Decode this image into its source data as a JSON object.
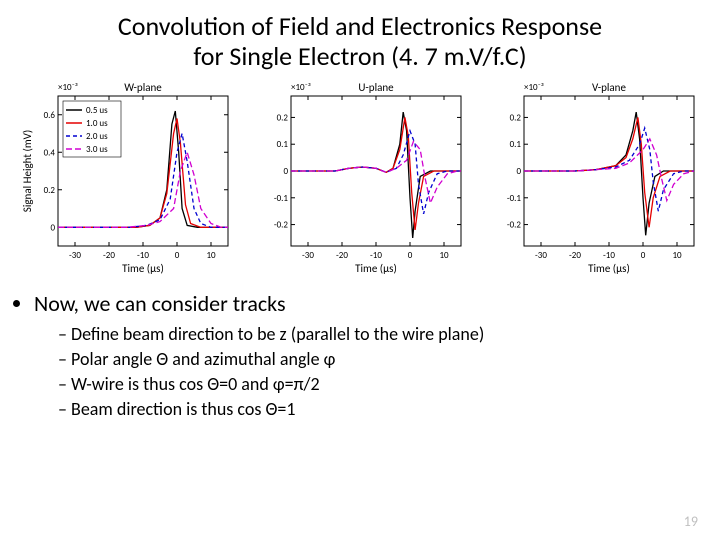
{
  "title_line1": "Convolution of Field and Electronics Response",
  "title_line2": "for Single Electron (4. 7 m.V/f.C)",
  "page_number": "19",
  "axis": {
    "xlabel": "Time (µs)",
    "ylabel": "Signal Height (mV)",
    "x10": "×10⁻³",
    "xlim": [
      -35,
      15
    ],
    "xticks": [
      -30,
      -20,
      -10,
      0,
      10
    ],
    "font_size": 10,
    "border_color": "#000000",
    "background": "#ffffff"
  },
  "legend": {
    "items": [
      {
        "label": "0.5 us",
        "color": "#000000",
        "dash": ""
      },
      {
        "label": "1.0 us",
        "color": "#e40000",
        "dash": ""
      },
      {
        "label": "2.0 us",
        "color": "#0000d0",
        "dash": "4 3"
      },
      {
        "label": "3.0 us",
        "color": "#d000d0",
        "dash": "6 3"
      }
    ]
  },
  "charts": [
    {
      "title": "W-plane",
      "ylim": [
        -0.1,
        0.7
      ],
      "yticks": [
        0,
        0.2,
        0.4,
        0.6
      ],
      "show_ylabel": true,
      "show_legend": true,
      "series": [
        {
          "color": "#000000",
          "dash": "",
          "pts": [
            [
              -35,
              0
            ],
            [
              -12,
              0
            ],
            [
              -8,
              0.01
            ],
            [
              -5,
              0.05
            ],
            [
              -3,
              0.2
            ],
            [
              -1.5,
              0.55
            ],
            [
              -0.5,
              0.62
            ],
            [
              0.5,
              0.4
            ],
            [
              1.5,
              0.1
            ],
            [
              3,
              0.01
            ],
            [
              6,
              0
            ],
            [
              15,
              0
            ]
          ]
        },
        {
          "color": "#e40000",
          "dash": "",
          "pts": [
            [
              -35,
              0
            ],
            [
              -12,
              0
            ],
            [
              -8,
              0.01
            ],
            [
              -5,
              0.05
            ],
            [
              -3,
              0.18
            ],
            [
              -1,
              0.5
            ],
            [
              0,
              0.58
            ],
            [
              1,
              0.45
            ],
            [
              2.5,
              0.12
            ],
            [
              4,
              0.02
            ],
            [
              7,
              0
            ],
            [
              15,
              0
            ]
          ]
        },
        {
          "color": "#0000d0",
          "dash": "4 3",
          "pts": [
            [
              -35,
              0
            ],
            [
              -14,
              0
            ],
            [
              -9,
              0.01
            ],
            [
              -5,
              0.04
            ],
            [
              -2,
              0.15
            ],
            [
              0,
              0.4
            ],
            [
              1.5,
              0.5
            ],
            [
              3,
              0.35
            ],
            [
              5,
              0.1
            ],
            [
              7,
              0.02
            ],
            [
              10,
              0
            ],
            [
              15,
              0
            ]
          ]
        },
        {
          "color": "#d000d0",
          "dash": "6 3",
          "pts": [
            [
              -35,
              0
            ],
            [
              -15,
              0
            ],
            [
              -9,
              0.01
            ],
            [
              -5,
              0.03
            ],
            [
              -1,
              0.1
            ],
            [
              1,
              0.3
            ],
            [
              3,
              0.4
            ],
            [
              5,
              0.28
            ],
            [
              7,
              0.1
            ],
            [
              10,
              0.02
            ],
            [
              13,
              0
            ],
            [
              15,
              0
            ]
          ]
        }
      ]
    },
    {
      "title": "U-plane",
      "ylim": [
        -0.28,
        0.28
      ],
      "yticks": [
        -0.2,
        -0.1,
        0,
        0.1,
        0.2
      ],
      "show_ylabel": false,
      "show_legend": false,
      "series": [
        {
          "color": "#000000",
          "dash": "",
          "pts": [
            [
              -35,
              0
            ],
            [
              -22,
              0
            ],
            [
              -18,
              0.01
            ],
            [
              -14,
              0.015
            ],
            [
              -10,
              0.01
            ],
            [
              -7,
              -0.005
            ],
            [
              -5,
              0.01
            ],
            [
              -3,
              0.1
            ],
            [
              -2,
              0.22
            ],
            [
              -1,
              0.15
            ],
            [
              0,
              -0.1
            ],
            [
              0.8,
              -0.25
            ],
            [
              1.5,
              -0.15
            ],
            [
              3,
              -0.02
            ],
            [
              6,
              0
            ],
            [
              15,
              0
            ]
          ]
        },
        {
          "color": "#e40000",
          "dash": "",
          "pts": [
            [
              -35,
              0
            ],
            [
              -22,
              0
            ],
            [
              -18,
              0.01
            ],
            [
              -14,
              0.015
            ],
            [
              -10,
              0.01
            ],
            [
              -7,
              -0.005
            ],
            [
              -5,
              0.01
            ],
            [
              -3,
              0.08
            ],
            [
              -1.5,
              0.2
            ],
            [
              -0.5,
              0.13
            ],
            [
              0.5,
              -0.08
            ],
            [
              1.5,
              -0.22
            ],
            [
              2.5,
              -0.12
            ],
            [
              4,
              -0.02
            ],
            [
              7,
              0
            ],
            [
              15,
              0
            ]
          ]
        },
        {
          "color": "#0000d0",
          "dash": "4 3",
          "pts": [
            [
              -35,
              0
            ],
            [
              -22,
              0
            ],
            [
              -18,
              0.01
            ],
            [
              -14,
              0.015
            ],
            [
              -10,
              0.01
            ],
            [
              -7,
              -0.005
            ],
            [
              -4,
              0.01
            ],
            [
              -2,
              0.06
            ],
            [
              0,
              0.15
            ],
            [
              1.5,
              0.1
            ],
            [
              2.5,
              -0.05
            ],
            [
              4,
              -0.16
            ],
            [
              5.5,
              -0.08
            ],
            [
              8,
              -0.01
            ],
            [
              11,
              0
            ],
            [
              15,
              0
            ]
          ]
        },
        {
          "color": "#d000d0",
          "dash": "6 3",
          "pts": [
            [
              -35,
              0
            ],
            [
              -22,
              0
            ],
            [
              -18,
              0.01
            ],
            [
              -14,
              0.015
            ],
            [
              -10,
              0.01
            ],
            [
              -7,
              -0.005
            ],
            [
              -4,
              0.01
            ],
            [
              -1,
              0.04
            ],
            [
              1,
              0.11
            ],
            [
              3,
              0.08
            ],
            [
              4.5,
              -0.03
            ],
            [
              6,
              -0.12
            ],
            [
              8,
              -0.06
            ],
            [
              11,
              -0.01
            ],
            [
              14,
              0
            ],
            [
              15,
              0
            ]
          ]
        }
      ]
    },
    {
      "title": "V-plane",
      "ylim": [
        -0.28,
        0.28
      ],
      "yticks": [
        -0.2,
        -0.1,
        0,
        0.1,
        0.2
      ],
      "show_ylabel": false,
      "show_legend": false,
      "series": [
        {
          "color": "#000000",
          "dash": "",
          "pts": [
            [
              -35,
              0
            ],
            [
              -20,
              0
            ],
            [
              -14,
              0.005
            ],
            [
              -8,
              0.02
            ],
            [
              -5,
              0.06
            ],
            [
              -3,
              0.15
            ],
            [
              -2,
              0.22
            ],
            [
              -1,
              0.12
            ],
            [
              0,
              -0.1
            ],
            [
              0.8,
              -0.24
            ],
            [
              1.8,
              -0.12
            ],
            [
              3.5,
              -0.02
            ],
            [
              6,
              0
            ],
            [
              15,
              0
            ]
          ]
        },
        {
          "color": "#e40000",
          "dash": "",
          "pts": [
            [
              -35,
              0
            ],
            [
              -20,
              0
            ],
            [
              -14,
              0.005
            ],
            [
              -8,
              0.02
            ],
            [
              -5,
              0.05
            ],
            [
              -3,
              0.12
            ],
            [
              -1.5,
              0.2
            ],
            [
              -0.5,
              0.1
            ],
            [
              0.5,
              -0.08
            ],
            [
              1.8,
              -0.21
            ],
            [
              3,
              -0.1
            ],
            [
              5,
              -0.02
            ],
            [
              8,
              0
            ],
            [
              15,
              0
            ]
          ]
        },
        {
          "color": "#0000d0",
          "dash": "4 3",
          "pts": [
            [
              -35,
              0
            ],
            [
              -20,
              0
            ],
            [
              -14,
              0.005
            ],
            [
              -8,
              0.015
            ],
            [
              -4,
              0.04
            ],
            [
              -1,
              0.1
            ],
            [
              0.5,
              0.16
            ],
            [
              2,
              0.08
            ],
            [
              3,
              -0.04
            ],
            [
              4.5,
              -0.15
            ],
            [
              6,
              -0.07
            ],
            [
              9,
              -0.01
            ],
            [
              12,
              0
            ],
            [
              15,
              0
            ]
          ]
        },
        {
          "color": "#d000d0",
          "dash": "6 3",
          "pts": [
            [
              -35,
              0
            ],
            [
              -20,
              0
            ],
            [
              -14,
              0.005
            ],
            [
              -8,
              0.01
            ],
            [
              -4,
              0.03
            ],
            [
              0,
              0.08
            ],
            [
              2,
              0.12
            ],
            [
              4,
              0.06
            ],
            [
              5.5,
              -0.03
            ],
            [
              7,
              -0.11
            ],
            [
              9,
              -0.05
            ],
            [
              12,
              -0.01
            ],
            [
              15,
              0
            ]
          ]
        }
      ]
    }
  ],
  "bullets": {
    "main": "Now, we can consider tracks",
    "sub": [
      "Define beam direction to be z (parallel to the wire plane)",
      "Polar angle Θ and azimuthal angle φ",
      "W-wire is thus cos Θ=0 and φ=π/2",
      "Beam direction is thus cos Θ=1"
    ]
  }
}
